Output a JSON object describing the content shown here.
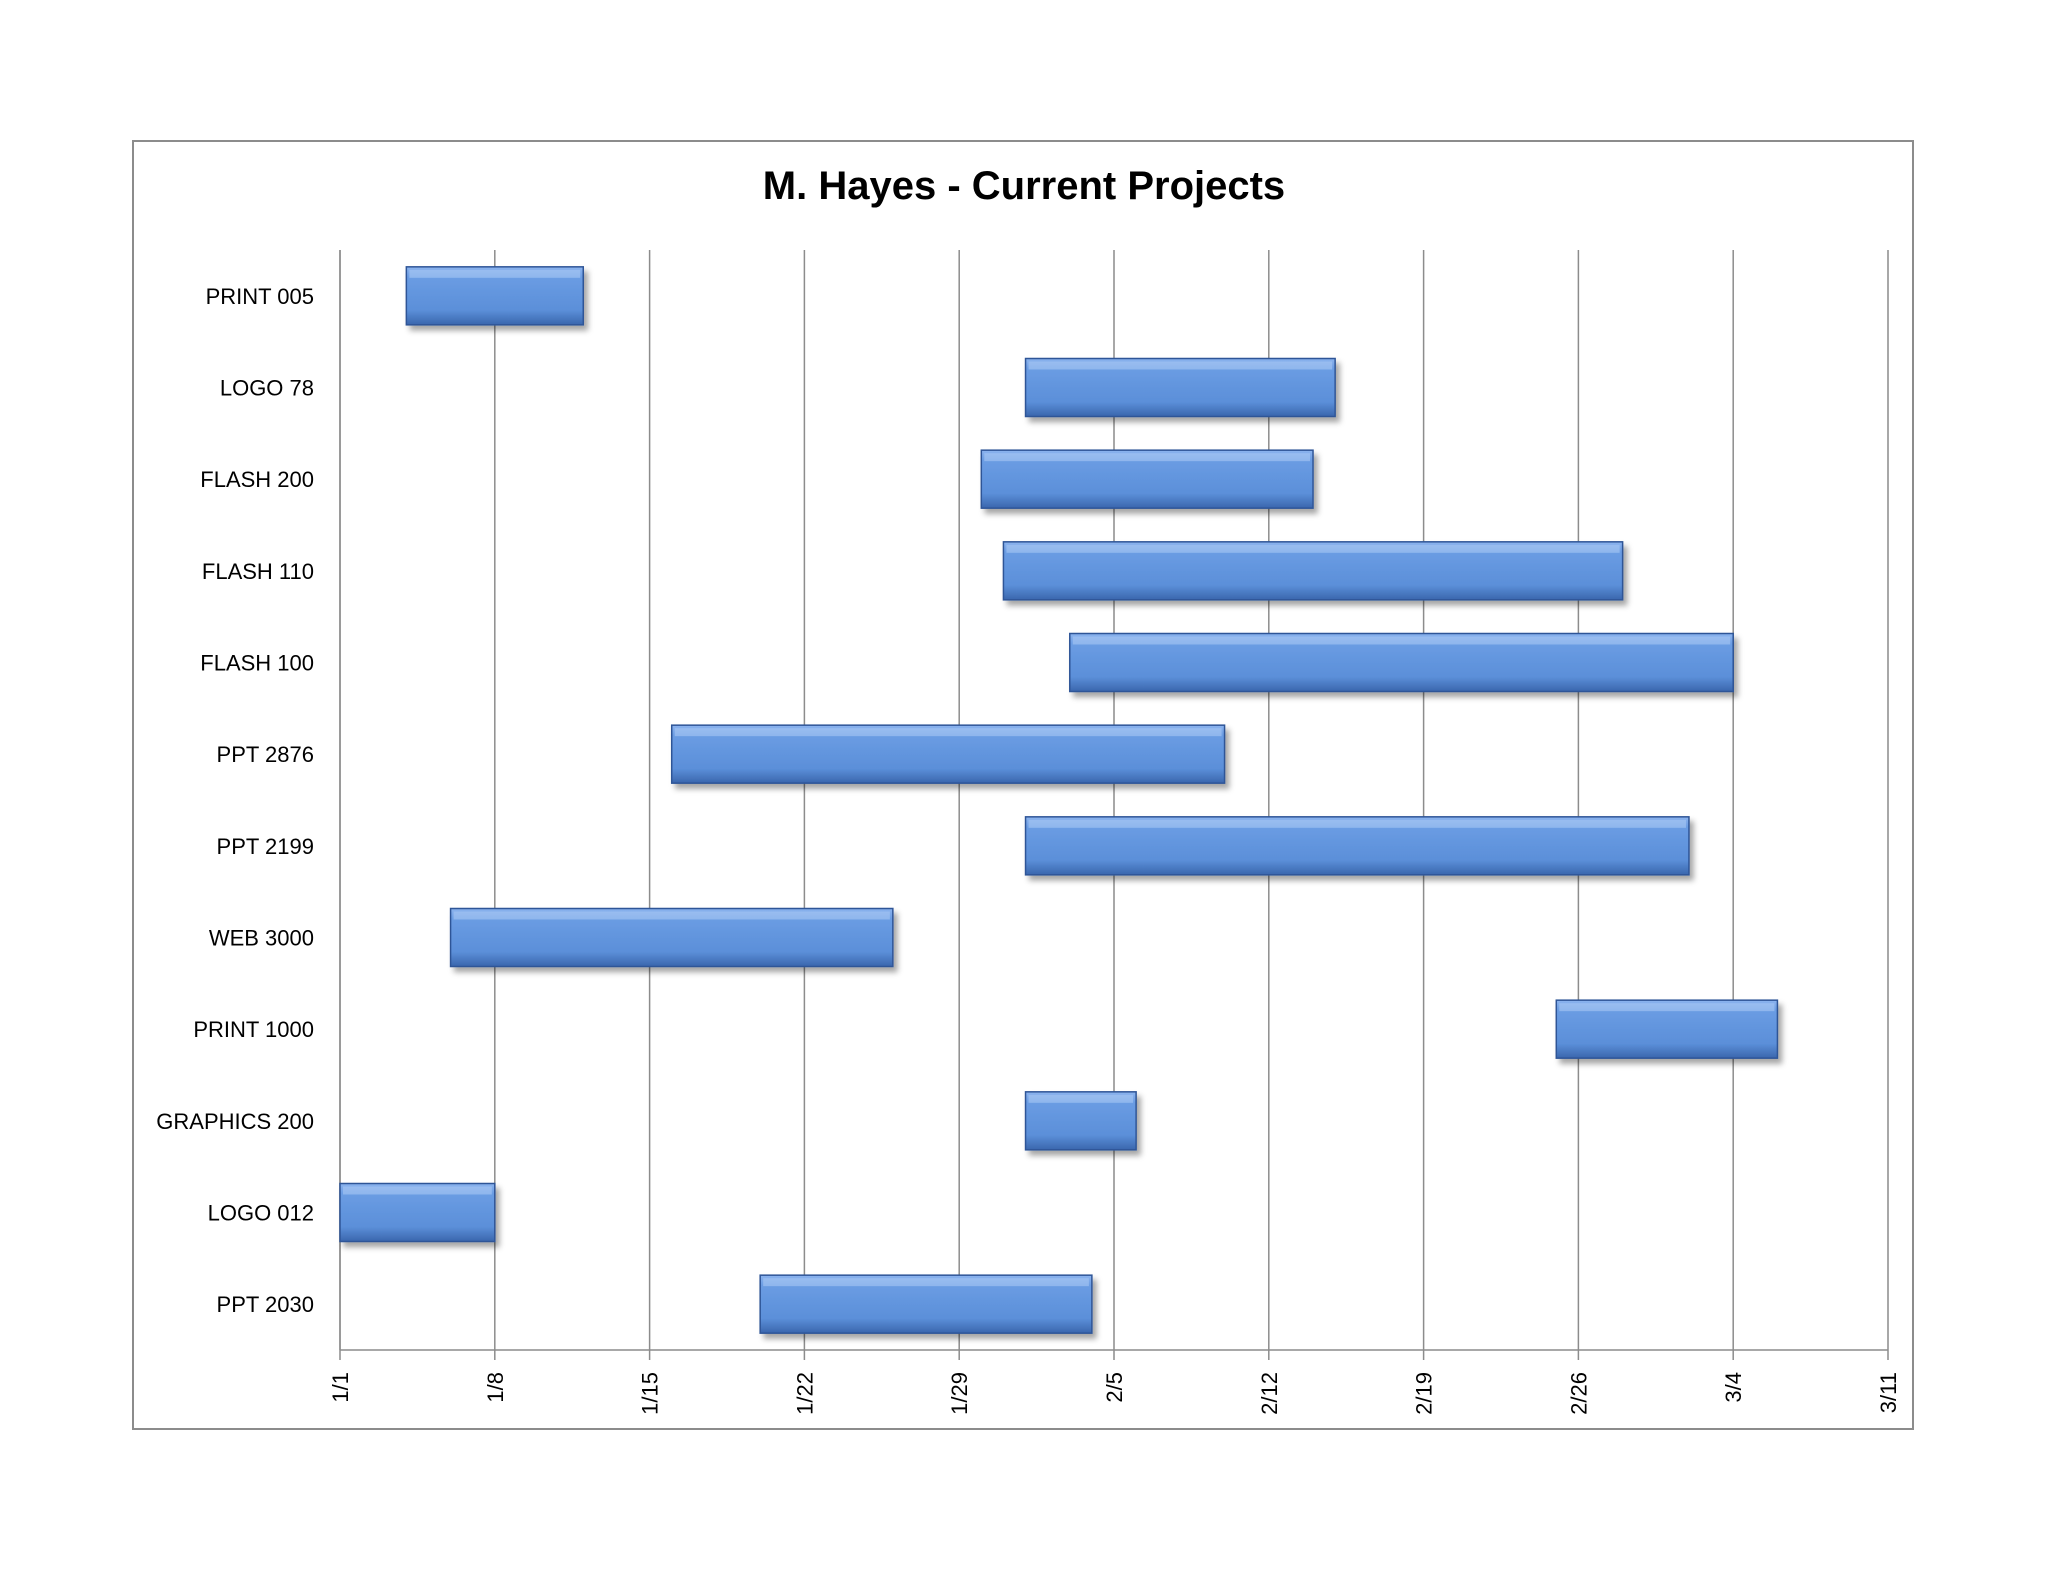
{
  "chart_data": {
    "type": "bar",
    "orientation": "horizontal",
    "title": "M. Hayes - Current Projects",
    "xlabel": "",
    "ylabel": "",
    "x_ticks": [
      "1/1",
      "1/8",
      "1/15",
      "1/22",
      "1/29",
      "2/5",
      "2/12",
      "2/19",
      "2/26",
      "3/4",
      "3/11"
    ],
    "xlim": [
      "1/1",
      "3/11"
    ],
    "grid": "vertical",
    "legend": "none",
    "bar_color": "#5b8fd9",
    "bars": [
      {
        "name": "PRINT 005",
        "start": "1/4",
        "end": "1/12"
      },
      {
        "name": "LOGO 78",
        "start": "2/1",
        "end": "2/15"
      },
      {
        "name": "FLASH 200",
        "start": "1/30",
        "end": "2/14"
      },
      {
        "name": "FLASH 110",
        "start": "1/31",
        "end": "2/28"
      },
      {
        "name": "FLASH 100",
        "start": "2/3",
        "end": "3/4"
      },
      {
        "name": "PPT 2876",
        "start": "1/16",
        "end": "2/10"
      },
      {
        "name": "PPT 2199",
        "start": "2/1",
        "end": "3/2"
      },
      {
        "name": "WEB 3000",
        "start": "1/6",
        "end": "1/26"
      },
      {
        "name": "PRINT 1000",
        "start": "2/25",
        "end": "3/6"
      },
      {
        "name": "GRAPHICS 200",
        "start": "2/1",
        "end": "2/6"
      },
      {
        "name": "LOGO 012",
        "start": "1/1",
        "end": "1/8"
      },
      {
        "name": "PPT 2030",
        "start": "1/20",
        "end": "2/4"
      }
    ]
  }
}
